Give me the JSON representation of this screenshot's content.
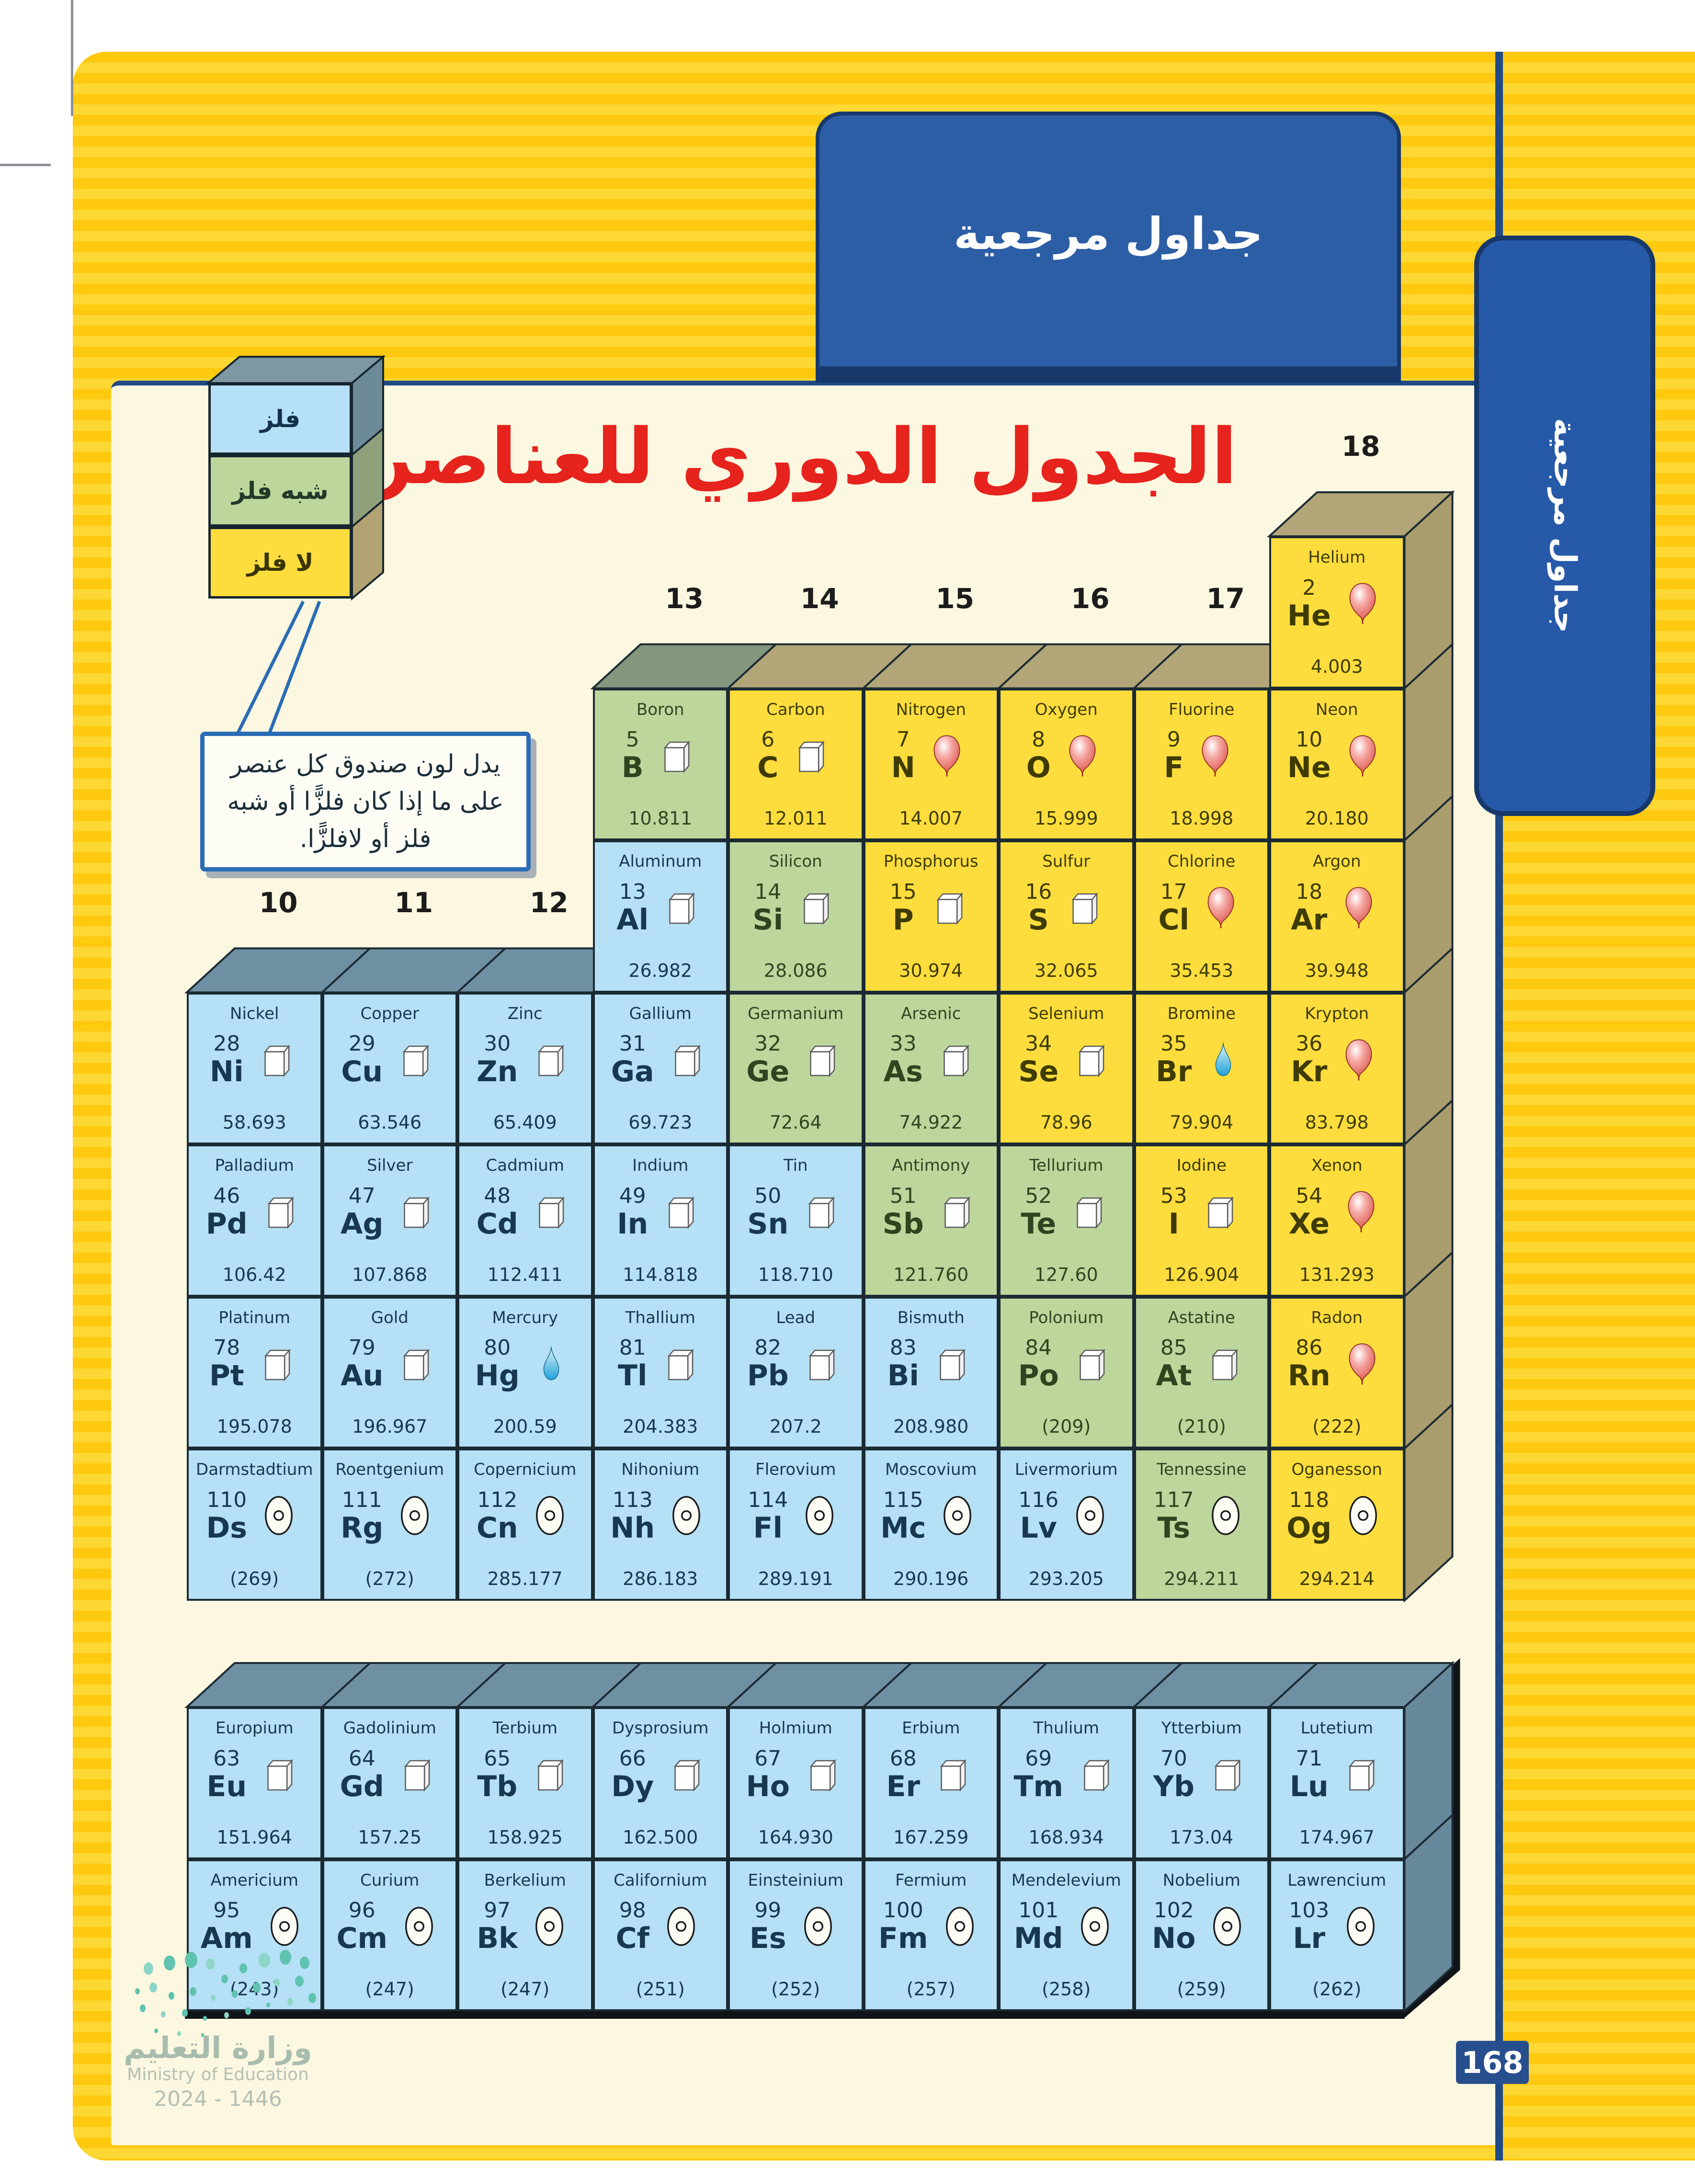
{
  "banner": {
    "label": "جداول مرجعية"
  },
  "side_tab": {
    "label": "جداول مرجعية"
  },
  "title": "الجدول الدوري للعناصر",
  "legend": {
    "items": [
      {
        "label": "فلز",
        "category": "metal"
      },
      {
        "label": "شبه فلز",
        "category": "metalloid"
      },
      {
        "label": "لا فلز",
        "category": "nonmetal"
      }
    ],
    "caption": "يدل لون صندوق كل عنصر على ما إذا كان فلزًّا أو شبه فلز أو لافلزًّا."
  },
  "colors": {
    "metal": "#b5e0f6",
    "metalloid": "#bdd69c",
    "nonmetal": "#fcdd3d",
    "metal_top": "#6f8fa2",
    "metalloid_top": "#84967e",
    "nonmetal_top": "#b2a577",
    "metal_side": "#68889b",
    "metalloid_side": "#7d9076",
    "nonmetal_side": "#a99c6d",
    "metal_text": "#17384e",
    "metalloid_text": "#2f4520",
    "nonmetal_text": "#3f3b04",
    "outline": "#1b2a33",
    "accent_navy": "#2c5ea6",
    "page_cream": "#fcf7e0",
    "bg_yellow": "#fec90e",
    "legend_top": "#7d98a2",
    "legend_sides": [
      "#6d8a99",
      "#8fa07b",
      "#b3a272"
    ]
  },
  "table": {
    "group_numbers": [
      "10",
      "11",
      "12",
      "13",
      "14",
      "15",
      "16",
      "17",
      "18"
    ],
    "main_rows": [
      [
        null,
        null,
        null,
        null,
        null,
        null,
        null,
        null,
        {
          "name": "Helium",
          "number": "2",
          "symbol": "He",
          "mass": "4.003",
          "category": "nonmetal",
          "state": "gas"
        }
      ],
      [
        null,
        null,
        null,
        {
          "name": "Boron",
          "number": "5",
          "symbol": "B",
          "mass": "10.811",
          "category": "metalloid",
          "state": "solid"
        },
        {
          "name": "Carbon",
          "number": "6",
          "symbol": "C",
          "mass": "12.011",
          "category": "nonmetal",
          "state": "solid"
        },
        {
          "name": "Nitrogen",
          "number": "7",
          "symbol": "N",
          "mass": "14.007",
          "category": "nonmetal",
          "state": "gas"
        },
        {
          "name": "Oxygen",
          "number": "8",
          "symbol": "O",
          "mass": "15.999",
          "category": "nonmetal",
          "state": "gas"
        },
        {
          "name": "Fluorine",
          "number": "9",
          "symbol": "F",
          "mass": "18.998",
          "category": "nonmetal",
          "state": "gas"
        },
        {
          "name": "Neon",
          "number": "10",
          "symbol": "Ne",
          "mass": "20.180",
          "category": "nonmetal",
          "state": "gas"
        }
      ],
      [
        null,
        null,
        null,
        {
          "name": "Aluminum",
          "number": "13",
          "symbol": "Al",
          "mass": "26.982",
          "category": "metal",
          "state": "solid"
        },
        {
          "name": "Silicon",
          "number": "14",
          "symbol": "Si",
          "mass": "28.086",
          "category": "metalloid",
          "state": "solid"
        },
        {
          "name": "Phosphorus",
          "number": "15",
          "symbol": "P",
          "mass": "30.974",
          "category": "nonmetal",
          "state": "solid"
        },
        {
          "name": "Sulfur",
          "number": "16",
          "symbol": "S",
          "mass": "32.065",
          "category": "nonmetal",
          "state": "solid"
        },
        {
          "name": "Chlorine",
          "number": "17",
          "symbol": "Cl",
          "mass": "35.453",
          "category": "nonmetal",
          "state": "gas"
        },
        {
          "name": "Argon",
          "number": "18",
          "symbol": "Ar",
          "mass": "39.948",
          "category": "nonmetal",
          "state": "gas"
        }
      ],
      [
        {
          "name": "Nickel",
          "number": "28",
          "symbol": "Ni",
          "mass": "58.693",
          "category": "metal",
          "state": "solid"
        },
        {
          "name": "Copper",
          "number": "29",
          "symbol": "Cu",
          "mass": "63.546",
          "category": "metal",
          "state": "solid"
        },
        {
          "name": "Zinc",
          "number": "30",
          "symbol": "Zn",
          "mass": "65.409",
          "category": "metal",
          "state": "solid"
        },
        {
          "name": "Gallium",
          "number": "31",
          "symbol": "Ga",
          "mass": "69.723",
          "category": "metal",
          "state": "solid"
        },
        {
          "name": "Germanium",
          "number": "32",
          "symbol": "Ge",
          "mass": "72.64",
          "category": "metalloid",
          "state": "solid"
        },
        {
          "name": "Arsenic",
          "number": "33",
          "symbol": "As",
          "mass": "74.922",
          "category": "metalloid",
          "state": "solid"
        },
        {
          "name": "Selenium",
          "number": "34",
          "symbol": "Se",
          "mass": "78.96",
          "category": "nonmetal",
          "state": "solid"
        },
        {
          "name": "Bromine",
          "number": "35",
          "symbol": "Br",
          "mass": "79.904",
          "category": "nonmetal",
          "state": "liquid"
        },
        {
          "name": "Krypton",
          "number": "36",
          "symbol": "Kr",
          "mass": "83.798",
          "category": "nonmetal",
          "state": "gas"
        }
      ],
      [
        {
          "name": "Palladium",
          "number": "46",
          "symbol": "Pd",
          "mass": "106.42",
          "category": "metal",
          "state": "solid"
        },
        {
          "name": "Silver",
          "number": "47",
          "symbol": "Ag",
          "mass": "107.868",
          "category": "metal",
          "state": "solid"
        },
        {
          "name": "Cadmium",
          "number": "48",
          "symbol": "Cd",
          "mass": "112.411",
          "category": "metal",
          "state": "solid"
        },
        {
          "name": "Indium",
          "number": "49",
          "symbol": "In",
          "mass": "114.818",
          "category": "metal",
          "state": "solid"
        },
        {
          "name": "Tin",
          "number": "50",
          "symbol": "Sn",
          "mass": "118.710",
          "category": "metal",
          "state": "solid"
        },
        {
          "name": "Antimony",
          "number": "51",
          "symbol": "Sb",
          "mass": "121.760",
          "category": "metalloid",
          "state": "solid"
        },
        {
          "name": "Tellurium",
          "number": "52",
          "symbol": "Te",
          "mass": "127.60",
          "category": "metalloid",
          "state": "solid"
        },
        {
          "name": "Iodine",
          "number": "53",
          "symbol": "I",
          "mass": "126.904",
          "category": "nonmetal",
          "state": "solid"
        },
        {
          "name": "Xenon",
          "number": "54",
          "symbol": "Xe",
          "mass": "131.293",
          "category": "nonmetal",
          "state": "gas"
        }
      ],
      [
        {
          "name": "Platinum",
          "number": "78",
          "symbol": "Pt",
          "mass": "195.078",
          "category": "metal",
          "state": "solid"
        },
        {
          "name": "Gold",
          "number": "79",
          "symbol": "Au",
          "mass": "196.967",
          "category": "metal",
          "state": "solid"
        },
        {
          "name": "Mercury",
          "number": "80",
          "symbol": "Hg",
          "mass": "200.59",
          "category": "metal",
          "state": "liquid"
        },
        {
          "name": "Thallium",
          "number": "81",
          "symbol": "Tl",
          "mass": "204.383",
          "category": "metal",
          "state": "solid"
        },
        {
          "name": "Lead",
          "number": "82",
          "symbol": "Pb",
          "mass": "207.2",
          "category": "metal",
          "state": "solid"
        },
        {
          "name": "Bismuth",
          "number": "83",
          "symbol": "Bi",
          "mass": "208.980",
          "category": "metal",
          "state": "solid"
        },
        {
          "name": "Polonium",
          "number": "84",
          "symbol": "Po",
          "mass": "(209)",
          "category": "metalloid",
          "state": "solid"
        },
        {
          "name": "Astatine",
          "number": "85",
          "symbol": "At",
          "mass": "(210)",
          "category": "metalloid",
          "state": "solid"
        },
        {
          "name": "Radon",
          "number": "86",
          "symbol": "Rn",
          "mass": "(222)",
          "category": "nonmetal",
          "state": "gas"
        }
      ],
      [
        {
          "name": "Darmstadtium",
          "number": "110",
          "symbol": "Ds",
          "mass": "(269)",
          "category": "metal",
          "state": "synthetic"
        },
        {
          "name": "Roentgenium",
          "number": "111",
          "symbol": "Rg",
          "mass": "(272)",
          "category": "metal",
          "state": "synthetic"
        },
        {
          "name": "Copernicium",
          "number": "112",
          "symbol": "Cn",
          "mass": "285.177",
          "category": "metal",
          "state": "synthetic"
        },
        {
          "name": "Nihonium",
          "number": "113",
          "symbol": "Nh",
          "mass": "286.183",
          "category": "metal",
          "state": "synthetic"
        },
        {
          "name": "Flerovium",
          "number": "114",
          "symbol": "Fl",
          "mass": "289.191",
          "category": "metal",
          "state": "synthetic"
        },
        {
          "name": "Moscovium",
          "number": "115",
          "symbol": "Mc",
          "mass": "290.196",
          "category": "metal",
          "state": "synthetic"
        },
        {
          "name": "Livermorium",
          "number": "116",
          "symbol": "Lv",
          "mass": "293.205",
          "category": "metal",
          "state": "synthetic"
        },
        {
          "name": "Tennessine",
          "number": "117",
          "symbol": "Ts",
          "mass": "294.211",
          "category": "metalloid",
          "state": "synthetic"
        },
        {
          "name": "Oganesson",
          "number": "118",
          "symbol": "Og",
          "mass": "294.214",
          "category": "nonmetal",
          "state": "synthetic"
        }
      ]
    ],
    "f_rows": [
      [
        {
          "name": "Europium",
          "number": "63",
          "symbol": "Eu",
          "mass": "151.964",
          "category": "metal",
          "state": "solid"
        },
        {
          "name": "Gadolinium",
          "number": "64",
          "symbol": "Gd",
          "mass": "157.25",
          "category": "metal",
          "state": "solid"
        },
        {
          "name": "Terbium",
          "number": "65",
          "symbol": "Tb",
          "mass": "158.925",
          "category": "metal",
          "state": "solid"
        },
        {
          "name": "Dysprosium",
          "number": "66",
          "symbol": "Dy",
          "mass": "162.500",
          "category": "metal",
          "state": "solid"
        },
        {
          "name": "Holmium",
          "number": "67",
          "symbol": "Ho",
          "mass": "164.930",
          "category": "metal",
          "state": "solid"
        },
        {
          "name": "Erbium",
          "number": "68",
          "symbol": "Er",
          "mass": "167.259",
          "category": "metal",
          "state": "solid"
        },
        {
          "name": "Thulium",
          "number": "69",
          "symbol": "Tm",
          "mass": "168.934",
          "category": "metal",
          "state": "solid"
        },
        {
          "name": "Ytterbium",
          "number": "70",
          "symbol": "Yb",
          "mass": "173.04",
          "category": "metal",
          "state": "solid"
        },
        {
          "name": "Lutetium",
          "number": "71",
          "symbol": "Lu",
          "mass": "174.967",
          "category": "metal",
          "state": "solid"
        }
      ],
      [
        {
          "name": "Americium",
          "number": "95",
          "symbol": "Am",
          "mass": "(243)",
          "category": "metal",
          "state": "synthetic"
        },
        {
          "name": "Curium",
          "number": "96",
          "symbol": "Cm",
          "mass": "(247)",
          "category": "metal",
          "state": "synthetic"
        },
        {
          "name": "Berkelium",
          "number": "97",
          "symbol": "Bk",
          "mass": "(247)",
          "category": "metal",
          "state": "synthetic"
        },
        {
          "name": "Californium",
          "number": "98",
          "symbol": "Cf",
          "mass": "(251)",
          "category": "metal",
          "state": "synthetic"
        },
        {
          "name": "Einsteinium",
          "number": "99",
          "symbol": "Es",
          "mass": "(252)",
          "category": "metal",
          "state": "synthetic"
        },
        {
          "name": "Fermium",
          "number": "100",
          "symbol": "Fm",
          "mass": "(257)",
          "category": "metal",
          "state": "synthetic"
        },
        {
          "name": "Mendelevium",
          "number": "101",
          "symbol": "Md",
          "mass": "(258)",
          "category": "metal",
          "state": "synthetic"
        },
        {
          "name": "Nobelium",
          "number": "102",
          "symbol": "No",
          "mass": "(259)",
          "category": "metal",
          "state": "synthetic"
        },
        {
          "name": "Lawrencium",
          "number": "103",
          "symbol": "Lr",
          "mass": "(262)",
          "category": "metal",
          "state": "synthetic"
        }
      ]
    ]
  },
  "page_number": "168",
  "footer": {
    "ministry_ar": "وزارة التعليم",
    "ministry_en": "Ministry of Education",
    "edition": "2024 - 1446"
  }
}
